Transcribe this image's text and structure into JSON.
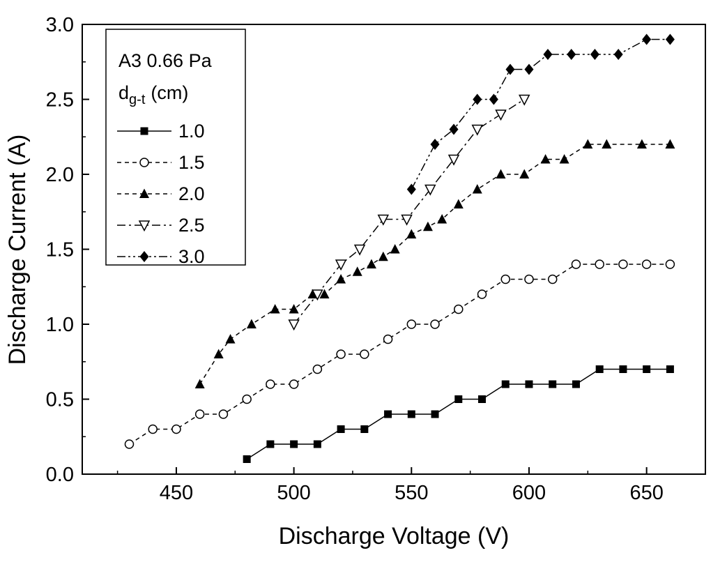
{
  "figure": {
    "background": "#ffffff",
    "ink": "#000000"
  },
  "chart_data": {
    "type": "scatter",
    "title": "",
    "xlabel": "Discharge Voltage (V)",
    "ylabel": "Discharge Current (A)",
    "xlim": [
      410,
      675
    ],
    "ylim": [
      0,
      3.0
    ],
    "grid": false,
    "color": "#000000",
    "x_ticks": {
      "values": [
        450,
        500,
        550,
        600,
        650
      ],
      "labels": [
        "450",
        "500",
        "550",
        "600",
        "650"
      ]
    },
    "y_ticks": {
      "values": [
        0,
        0.5,
        1.0,
        1.5,
        2.0,
        2.5,
        3.0
      ],
      "labels": [
        "0.0",
        "0.5",
        "1.0",
        "1.5",
        "2.0",
        "2.5",
        "3.0"
      ]
    },
    "x_minor_step": 25,
    "y_minor_step": 0.25,
    "legend": {
      "position": "top-left",
      "title_line1": "A3 0.66 Pa",
      "title_d": "d",
      "title_sub": "g-t",
      "title_rest": "(cm)"
    },
    "series": [
      {
        "name": "1.0",
        "marker": "square-filled",
        "line": "solid",
        "points": [
          [
            480,
            0.1
          ],
          [
            490,
            0.2
          ],
          [
            500,
            0.2
          ],
          [
            510,
            0.2
          ],
          [
            520,
            0.3
          ],
          [
            530,
            0.3
          ],
          [
            540,
            0.4
          ],
          [
            550,
            0.4
          ],
          [
            560,
            0.4
          ],
          [
            570,
            0.5
          ],
          [
            580,
            0.5
          ],
          [
            590,
            0.6
          ],
          [
            600,
            0.6
          ],
          [
            610,
            0.6
          ],
          [
            620,
            0.6
          ],
          [
            630,
            0.7
          ],
          [
            640,
            0.7
          ],
          [
            650,
            0.7
          ],
          [
            660,
            0.7
          ]
        ]
      },
      {
        "name": "1.5",
        "marker": "circle-open",
        "line": "dash",
        "points": [
          [
            430,
            0.2
          ],
          [
            440,
            0.3
          ],
          [
            450,
            0.3
          ],
          [
            460,
            0.4
          ],
          [
            470,
            0.4
          ],
          [
            480,
            0.5
          ],
          [
            490,
            0.6
          ],
          [
            500,
            0.6
          ],
          [
            510,
            0.7
          ],
          [
            520,
            0.8
          ],
          [
            530,
            0.8
          ],
          [
            540,
            0.9
          ],
          [
            550,
            1.0
          ],
          [
            560,
            1.0
          ],
          [
            570,
            1.1
          ],
          [
            580,
            1.2
          ],
          [
            590,
            1.3
          ],
          [
            600,
            1.3
          ],
          [
            610,
            1.3
          ],
          [
            620,
            1.4
          ],
          [
            630,
            1.4
          ],
          [
            640,
            1.4
          ],
          [
            650,
            1.4
          ],
          [
            660,
            1.4
          ]
        ]
      },
      {
        "name": "2.0",
        "marker": "triangle-up-filled",
        "line": "dash",
        "points": [
          [
            460,
            0.6
          ],
          [
            468,
            0.8
          ],
          [
            473,
            0.9
          ],
          [
            482,
            1.0
          ],
          [
            492,
            1.1
          ],
          [
            500,
            1.1
          ],
          [
            508,
            1.2
          ],
          [
            513,
            1.2
          ],
          [
            520,
            1.3
          ],
          [
            527,
            1.35
          ],
          [
            533,
            1.4
          ],
          [
            538,
            1.45
          ],
          [
            543,
            1.5
          ],
          [
            550,
            1.6
          ],
          [
            557,
            1.65
          ],
          [
            563,
            1.7
          ],
          [
            570,
            1.8
          ],
          [
            578,
            1.9
          ],
          [
            588,
            2.0
          ],
          [
            598,
            2.0
          ],
          [
            607,
            2.1
          ],
          [
            615,
            2.1
          ],
          [
            625,
            2.2
          ],
          [
            633,
            2.2
          ],
          [
            648,
            2.2
          ],
          [
            660,
            2.2
          ]
        ]
      },
      {
        "name": "2.5",
        "marker": "triangle-down-open",
        "line": "dashdot",
        "points": [
          [
            500,
            1.0
          ],
          [
            510,
            1.2
          ],
          [
            520,
            1.4
          ],
          [
            528,
            1.5
          ],
          [
            538,
            1.7
          ],
          [
            548,
            1.7
          ],
          [
            558,
            1.9
          ],
          [
            568,
            2.1
          ],
          [
            578,
            2.3
          ],
          [
            588,
            2.4
          ],
          [
            598,
            2.5
          ]
        ]
      },
      {
        "name": "3.0",
        "marker": "diamond-filled",
        "line": "dashdotdot",
        "points": [
          [
            550,
            1.9
          ],
          [
            560,
            2.2
          ],
          [
            568,
            2.3
          ],
          [
            578,
            2.5
          ],
          [
            585,
            2.5
          ],
          [
            592,
            2.7
          ],
          [
            600,
            2.7
          ],
          [
            608,
            2.8
          ],
          [
            618,
            2.8
          ],
          [
            628,
            2.8
          ],
          [
            638,
            2.8
          ],
          [
            650,
            2.9
          ],
          [
            660,
            2.9
          ]
        ]
      }
    ]
  }
}
